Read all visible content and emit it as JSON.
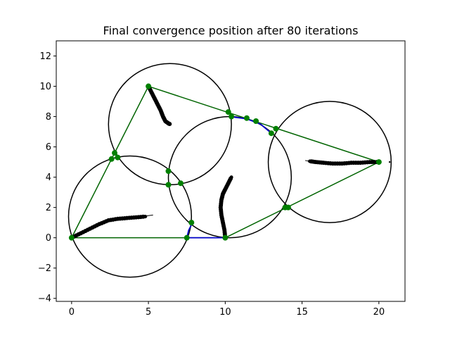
{
  "chart_data": {
    "type": "scatter",
    "title": "Final convergence position after 80 iterations",
    "xlabel": "",
    "ylabel": "",
    "xlim": [
      -1.0,
      21.7
    ],
    "ylim": [
      -4.2,
      13.0
    ],
    "x_ticks": [
      0,
      5,
      10,
      15,
      20
    ],
    "y_ticks": [
      -4,
      -2,
      0,
      2,
      4,
      6,
      8,
      10,
      12
    ],
    "grid": false,
    "legend": false,
    "colors": {
      "circle": "#000000",
      "boundary": "#006400",
      "arc": "#0000cc",
      "marker": "#008000",
      "trail": "#000000"
    },
    "circles": [
      {
        "cx": 3.8,
        "cy": 1.4,
        "r": 4.0
      },
      {
        "cx": 6.4,
        "cy": 7.5,
        "r": 4.0
      },
      {
        "cx": 10.3,
        "cy": 4.0,
        "r": 4.0
      },
      {
        "cx": 16.8,
        "cy": 5.0,
        "r": 4.0
      }
    ],
    "boundary_lines": [
      [
        [
          0,
          0
        ],
        [
          5,
          10
        ]
      ],
      [
        [
          5,
          10
        ],
        [
          20,
          5
        ]
      ],
      [
        [
          20,
          5
        ],
        [
          10,
          0
        ]
      ],
      [
        [
          0,
          0
        ],
        [
          7.5,
          0
        ]
      ],
      [
        [
          7.5,
          0
        ],
        [
          10,
          0
        ]
      ]
    ],
    "arcs": [
      {
        "points": [
          [
            7.5,
            0
          ],
          [
            7.62,
            0.5
          ],
          [
            7.85,
            0.95
          ]
        ]
      },
      {
        "points": [
          [
            7.5,
            0
          ],
          [
            8.5,
            0
          ],
          [
            10,
            0
          ]
        ]
      },
      {
        "points": [
          [
            10.3,
            8.0
          ],
          [
            11.4,
            7.85
          ],
          [
            12.3,
            7.5
          ],
          [
            13.0,
            6.9
          ]
        ]
      }
    ],
    "markers": [
      [
        0,
        0
      ],
      [
        5,
        10
      ],
      [
        20,
        5
      ],
      [
        10,
        0
      ],
      [
        7.5,
        0
      ],
      [
        7.8,
        1.0
      ],
      [
        2.6,
        5.2
      ],
      [
        2.8,
        5.6
      ],
      [
        3.0,
        5.3
      ],
      [
        6.3,
        4.4
      ],
      [
        6.3,
        3.5
      ],
      [
        7.1,
        3.6
      ],
      [
        10.2,
        8.3
      ],
      [
        10.4,
        8.0
      ],
      [
        11.4,
        7.9
      ],
      [
        12.0,
        7.7
      ],
      [
        13.0,
        6.9
      ],
      [
        13.3,
        7.2
      ],
      [
        13.9,
        2.0
      ],
      [
        14.1,
        2.0
      ]
    ],
    "trails": [
      {
        "points": [
          [
            0,
            0
          ],
          [
            0.6,
            0.3
          ],
          [
            1.2,
            0.6
          ],
          [
            1.8,
            0.9
          ],
          [
            2.4,
            1.15
          ],
          [
            3.0,
            1.25
          ],
          [
            3.6,
            1.3
          ],
          [
            4.2,
            1.35
          ],
          [
            4.8,
            1.4
          ]
        ],
        "tail": [
          [
            4.8,
            1.4
          ],
          [
            4.9,
            1.45
          ],
          [
            5.3,
            1.5
          ]
        ]
      },
      {
        "points": [
          [
            5.0,
            10.0
          ],
          [
            5.2,
            9.6
          ],
          [
            5.4,
            9.2
          ],
          [
            5.6,
            8.8
          ],
          [
            5.8,
            8.4
          ],
          [
            5.95,
            8.0
          ],
          [
            6.1,
            7.7
          ],
          [
            6.3,
            7.55
          ],
          [
            6.4,
            7.5
          ]
        ],
        "tail": []
      },
      {
        "points": [
          [
            10.0,
            0.0
          ],
          [
            9.95,
            0.5
          ],
          [
            9.85,
            1.0
          ],
          [
            9.75,
            1.5
          ],
          [
            9.7,
            2.0
          ],
          [
            9.75,
            2.5
          ],
          [
            9.85,
            2.9
          ],
          [
            10.0,
            3.2
          ],
          [
            10.2,
            3.6
          ],
          [
            10.4,
            4.0
          ]
        ],
        "tail": []
      },
      {
        "points": [
          [
            20.0,
            5.0
          ],
          [
            19.4,
            5.0
          ],
          [
            18.8,
            4.95
          ],
          [
            18.2,
            4.95
          ],
          [
            17.6,
            4.9
          ],
          [
            17.0,
            4.9
          ],
          [
            16.4,
            4.95
          ],
          [
            15.9,
            5.0
          ],
          [
            15.5,
            5.05
          ]
        ],
        "tail": [
          [
            15.5,
            5.05
          ],
          [
            15.2,
            5.1
          ]
        ]
      }
    ],
    "extra_points": [
      [
        20.7,
        5.0
      ]
    ]
  }
}
